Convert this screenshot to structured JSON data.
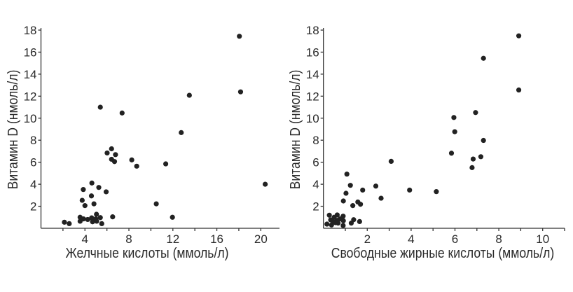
{
  "chart_data": [
    {
      "type": "scatter",
      "xlabel": "Желчные кислоты (ммоль/л)",
      "ylabel": "Витамин D (нмоль/л)",
      "xlim": [
        0,
        21.7
      ],
      "ylim": [
        0,
        18
      ],
      "xticks": [
        4,
        8,
        12,
        16,
        20
      ],
      "xminor_step": 2,
      "yticks": [
        2,
        4,
        6,
        8,
        10,
        12,
        14,
        16,
        18
      ],
      "grid": false,
      "color": "#222222",
      "points": [
        [
          18.05,
          17.44
        ],
        [
          18.16,
          12.39
        ],
        [
          13.5,
          12.08
        ],
        [
          5.4,
          11.0
        ],
        [
          7.38,
          10.47
        ],
        [
          12.76,
          8.69
        ],
        [
          6.42,
          7.22
        ],
        [
          6.02,
          6.84
        ],
        [
          6.78,
          6.69
        ],
        [
          6.42,
          6.27
        ],
        [
          6.69,
          6.06
        ],
        [
          8.26,
          6.21
        ],
        [
          8.71,
          5.64
        ],
        [
          11.35,
          5.85
        ],
        [
          20.4,
          4.0
        ],
        [
          4.63,
          4.11
        ],
        [
          5.26,
          3.71
        ],
        [
          3.85,
          3.52
        ],
        [
          5.93,
          3.31
        ],
        [
          4.59,
          2.94
        ],
        [
          3.75,
          2.54
        ],
        [
          4.82,
          2.22
        ],
        [
          4.0,
          2.06
        ],
        [
          10.49,
          2.22
        ],
        [
          11.96,
          1.0
        ],
        [
          6.52,
          1.04
        ],
        [
          5.05,
          1.27
        ],
        [
          3.56,
          1.0
        ],
        [
          3.56,
          0.64
        ],
        [
          3.87,
          0.85
        ],
        [
          4.25,
          0.8
        ],
        [
          4.61,
          0.95
        ],
        [
          4.69,
          0.59
        ],
        [
          4.99,
          0.85
        ],
        [
          5.07,
          0.64
        ],
        [
          5.4,
          0.97
        ],
        [
          5.53,
          0.42
        ],
        [
          2.13,
          0.55
        ],
        [
          2.57,
          0.42
        ]
      ]
    },
    {
      "type": "scatter",
      "xlabel": "Свободные жирные кислоты (ммоль/л)",
      "ylabel": "Витамин D (нмоль/л)",
      "xlim": [
        0,
        11
      ],
      "ylim": [
        0,
        18
      ],
      "xticks": [
        2,
        4,
        6,
        8,
        10
      ],
      "xminor_step": 1,
      "yticks": [
        2,
        4,
        6,
        8,
        10,
        12,
        14,
        16,
        18
      ],
      "grid": false,
      "color": "#222222",
      "points": [
        [
          8.91,
          17.48
        ],
        [
          7.3,
          15.44
        ],
        [
          8.91,
          12.56
        ],
        [
          6.94,
          10.51
        ],
        [
          5.95,
          10.06
        ],
        [
          5.99,
          8.77
        ],
        [
          7.3,
          7.98
        ],
        [
          5.84,
          6.82
        ],
        [
          6.83,
          6.29
        ],
        [
          7.18,
          6.5
        ],
        [
          6.78,
          5.51
        ],
        [
          3.09,
          6.08
        ],
        [
          1.07,
          4.92
        ],
        [
          1.23,
          3.9
        ],
        [
          2.39,
          3.83
        ],
        [
          1.79,
          3.47
        ],
        [
          3.93,
          3.47
        ],
        [
          5.15,
          3.33
        ],
        [
          1.03,
          3.18
        ],
        [
          2.63,
          2.73
        ],
        [
          0.91,
          2.48
        ],
        [
          1.57,
          2.39
        ],
        [
          1.69,
          2.18
        ],
        [
          1.34,
          2.06
        ],
        [
          0.27,
          1.19
        ],
        [
          0.63,
          1.21
        ],
        [
          0.9,
          1.1
        ],
        [
          0.49,
          1.0
        ],
        [
          0.33,
          0.76
        ],
        [
          0.76,
          0.85
        ],
        [
          0.63,
          0.72
        ],
        [
          0.91,
          0.68
        ],
        [
          0.45,
          0.59
        ],
        [
          1.38,
          0.78
        ],
        [
          1.65,
          0.61
        ],
        [
          1.27,
          0.47
        ],
        [
          0.16,
          0.38
        ],
        [
          0.37,
          0.3
        ],
        [
          0.67,
          0.47
        ],
        [
          0.9,
          0.25
        ],
        [
          0.55,
          0.51
        ]
      ]
    }
  ]
}
